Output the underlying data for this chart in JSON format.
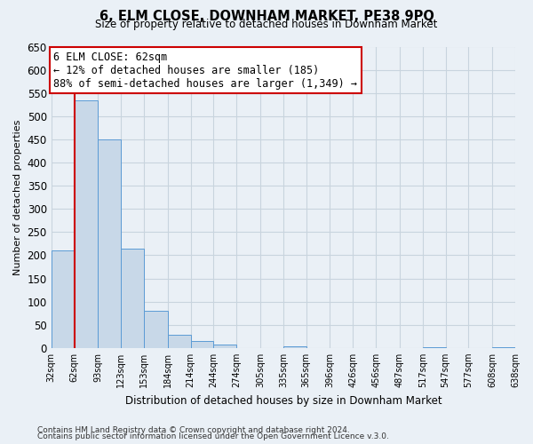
{
  "title": "6, ELM CLOSE, DOWNHAM MARKET, PE38 9PQ",
  "subtitle": "Size of property relative to detached houses in Downham Market",
  "xlabel": "Distribution of detached houses by size in Downham Market",
  "ylabel": "Number of detached properties",
  "bin_edges": [
    32,
    62,
    93,
    123,
    153,
    184,
    214,
    244,
    274,
    305,
    335,
    365,
    396,
    426,
    456,
    487,
    517,
    547,
    577,
    608,
    638
  ],
  "bar_heights": [
    210,
    535,
    450,
    215,
    80,
    28,
    15,
    8,
    0,
    0,
    3,
    0,
    0,
    0,
    0,
    0,
    1,
    0,
    0,
    1
  ],
  "bar_color": "#c8d8e8",
  "bar_edge_color": "#5b9bd5",
  "grid_color": "#c8d4de",
  "background_color": "#eaf0f6",
  "property_line_x": 62,
  "property_line_color": "#cc0000",
  "annotation_line1": "6 ELM CLOSE: 62sqm",
  "annotation_line2": "← 12% of detached houses are smaller (185)",
  "annotation_line3": "88% of semi-detached houses are larger (1,349) →",
  "annotation_box_color": "#ffffff",
  "annotation_box_edge": "#cc0000",
  "ylim": [
    0,
    650
  ],
  "yticks": [
    0,
    50,
    100,
    150,
    200,
    250,
    300,
    350,
    400,
    450,
    500,
    550,
    600,
    650
  ],
  "footer1": "Contains HM Land Registry data © Crown copyright and database right 2024.",
  "footer2": "Contains public sector information licensed under the Open Government Licence v.3.0."
}
